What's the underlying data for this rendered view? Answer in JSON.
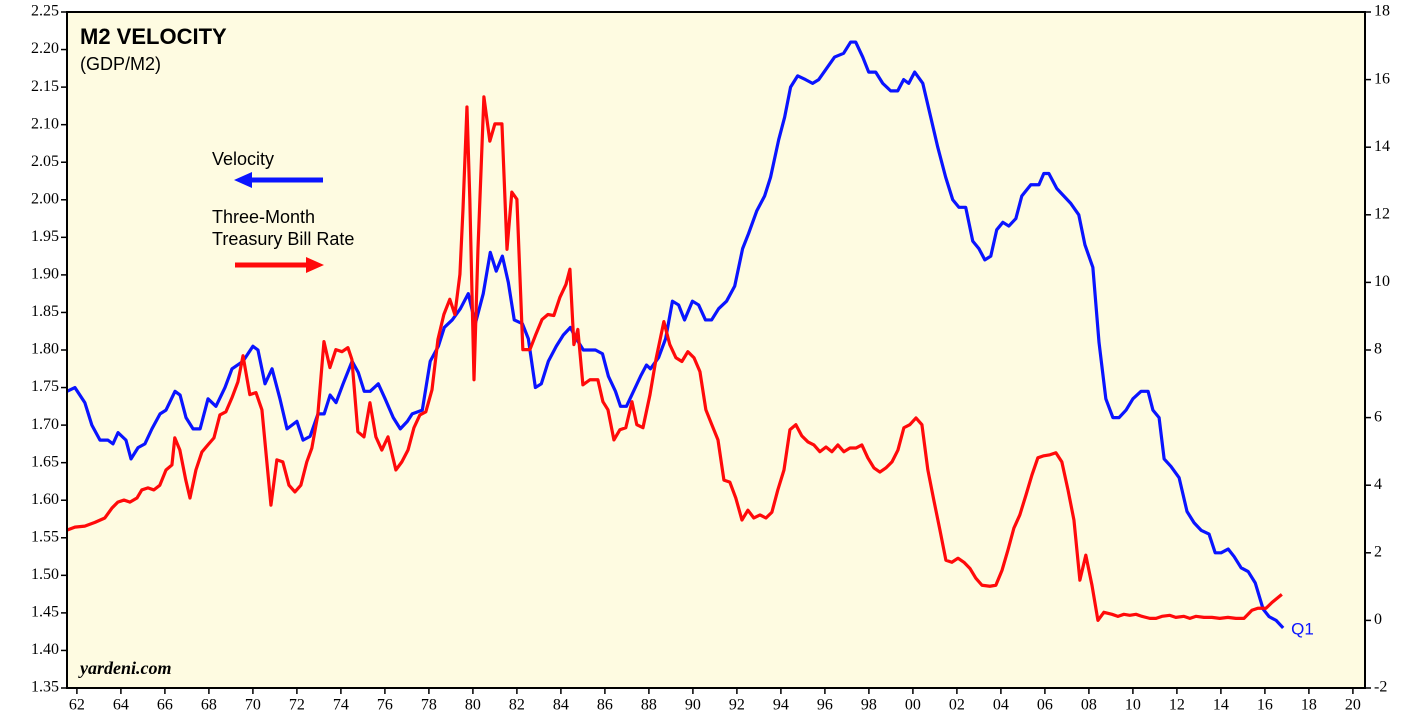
{
  "chart_data": {
    "type": "line",
    "title": "M2 VELOCITY",
    "subtitle": "(GDP/M2)",
    "watermark": "yardeni.com",
    "annotations": [
      {
        "text": "Q1",
        "x": 2016.83,
        "y": 1.43
      }
    ],
    "xlim": [
      1961.55,
      2020.55
    ],
    "xticks": [
      {
        "value": 1962,
        "label": "62"
      },
      {
        "value": 1964,
        "label": "64"
      },
      {
        "value": 1966,
        "label": "66"
      },
      {
        "value": 1968,
        "label": "68"
      },
      {
        "value": 1970,
        "label": "70"
      },
      {
        "value": 1972,
        "label": "72"
      },
      {
        "value": 1974,
        "label": "74"
      },
      {
        "value": 1976,
        "label": "76"
      },
      {
        "value": 1978,
        "label": "78"
      },
      {
        "value": 1980,
        "label": "80"
      },
      {
        "value": 1982,
        "label": "82"
      },
      {
        "value": 1984,
        "label": "84"
      },
      {
        "value": 1986,
        "label": "86"
      },
      {
        "value": 1988,
        "label": "88"
      },
      {
        "value": 1990,
        "label": "90"
      },
      {
        "value": 1992,
        "label": "92"
      },
      {
        "value": 1994,
        "label": "94"
      },
      {
        "value": 1996,
        "label": "96"
      },
      {
        "value": 1998,
        "label": "98"
      },
      {
        "value": 2000,
        "label": "00"
      },
      {
        "value": 2002,
        "label": "02"
      },
      {
        "value": 2004,
        "label": "04"
      },
      {
        "value": 2006,
        "label": "06"
      },
      {
        "value": 2008,
        "label": "08"
      },
      {
        "value": 2010,
        "label": "10"
      },
      {
        "value": 2012,
        "label": "12"
      },
      {
        "value": 2014,
        "label": "14"
      },
      {
        "value": 2016,
        "label": "16"
      },
      {
        "value": 2018,
        "label": "18"
      },
      {
        "value": 2020,
        "label": "20"
      }
    ],
    "ylim": [
      1.35,
      2.25
    ],
    "yticks": [
      {
        "value": 1.35,
        "label": "1.35"
      },
      {
        "value": 1.4,
        "label": "1.40"
      },
      {
        "value": 1.45,
        "label": "1.45"
      },
      {
        "value": 1.5,
        "label": "1.50"
      },
      {
        "value": 1.55,
        "label": "1.55"
      },
      {
        "value": 1.6,
        "label": "1.60"
      },
      {
        "value": 1.65,
        "label": "1.65"
      },
      {
        "value": 1.7,
        "label": "1.70"
      },
      {
        "value": 1.75,
        "label": "1.75"
      },
      {
        "value": 1.8,
        "label": "1.80"
      },
      {
        "value": 1.85,
        "label": "1.85"
      },
      {
        "value": 1.9,
        "label": "1.90"
      },
      {
        "value": 1.95,
        "label": "1.95"
      },
      {
        "value": 2.0,
        "label": "2.00"
      },
      {
        "value": 2.05,
        "label": "2.05"
      },
      {
        "value": 2.1,
        "label": "2.10"
      },
      {
        "value": 2.15,
        "label": "2.15"
      },
      {
        "value": 2.2,
        "label": "2.20"
      },
      {
        "value": 2.25,
        "label": "2.25"
      }
    ],
    "y2lim": [
      -2,
      18
    ],
    "y2ticks": [
      -2,
      0,
      2,
      4,
      6,
      8,
      10,
      12,
      14,
      16,
      18
    ],
    "grid": false,
    "series": [
      {
        "name": "Velocity",
        "color": "#0a14ff",
        "axis": "y",
        "x": [
          1961.55,
          1961.91,
          1962.36,
          1962.68,
          1963.05,
          1963.41,
          1963.64,
          1963.87,
          1964.23,
          1964.46,
          1964.78,
          1965.09,
          1965.41,
          1965.78,
          1966.05,
          1966.46,
          1966.69,
          1966.96,
          1967.28,
          1967.6,
          1967.96,
          1968.32,
          1968.73,
          1969.05,
          1969.55,
          1970.0,
          1970.23,
          1970.55,
          1970.87,
          1971.23,
          1971.55,
          1972.0,
          1972.28,
          1972.6,
          1972.96,
          1973.24,
          1973.51,
          1973.78,
          1974.1,
          1974.51,
          1974.79,
          1975.06,
          1975.33,
          1975.7,
          1976.01,
          1976.38,
          1976.7,
          1977.02,
          1977.24,
          1977.7,
          1978.06,
          1978.43,
          1978.7,
          1979.06,
          1979.43,
          1979.79,
          1980.11,
          1980.47,
          1980.79,
          1981.06,
          1981.34,
          1981.61,
          1981.88,
          1982.25,
          1982.52,
          1982.84,
          1983.11,
          1983.43,
          1983.79,
          1984.11,
          1984.43,
          1984.7,
          1985.02,
          1985.57,
          1985.89,
          1986.16,
          1986.48,
          1986.71,
          1986.98,
          1987.3,
          1987.62,
          1987.89,
          1988.07,
          1988.44,
          1988.76,
          1989.07,
          1989.35,
          1989.62,
          1989.98,
          1990.26,
          1990.57,
          1990.85,
          1991.17,
          1991.53,
          1991.9,
          1992.26,
          1992.53,
          1992.9,
          1993.26,
          1993.53,
          1993.9,
          1994.17,
          1994.44,
          1994.76,
          1995.12,
          1995.44,
          1995.72,
          1996.08,
          1996.44,
          1996.85,
          1997.17,
          1997.4,
          1997.72,
          1997.99,
          1998.31,
          1998.63,
          1998.99,
          1999.31,
          1999.58,
          1999.81,
          2000.08,
          2000.45,
          2000.81,
          2001.13,
          2001.49,
          2001.81,
          2002.09,
          2002.4,
          2002.72,
          2003.0,
          2003.27,
          2003.54,
          2003.81,
          2004.09,
          2004.36,
          2004.68,
          2004.95,
          2005.36,
          2005.73,
          2005.95,
          2006.18,
          2006.54,
          2006.86,
          2007.18,
          2007.54,
          2007.82,
          2008.18,
          2008.46,
          2008.77,
          2009.09,
          2009.37,
          2009.69,
          2010.0,
          2010.37,
          2010.69,
          2010.91,
          2011.19,
          2011.42,
          2011.73,
          2012.1,
          2012.46,
          2012.78,
          2013.1,
          2013.46,
          2013.74,
          2014.01,
          2014.33,
          2014.6,
          2014.92,
          2015.24,
          2015.56,
          2015.92,
          2016.19,
          2016.51,
          2016.83
        ],
        "values": [
          1.745,
          1.75,
          1.73,
          1.7,
          1.68,
          1.68,
          1.675,
          1.69,
          1.68,
          1.655,
          1.67,
          1.675,
          1.695,
          1.715,
          1.72,
          1.745,
          1.74,
          1.71,
          1.695,
          1.695,
          1.735,
          1.725,
          1.75,
          1.775,
          1.785,
          1.805,
          1.8,
          1.755,
          1.775,
          1.735,
          1.695,
          1.705,
          1.68,
          1.685,
          1.715,
          1.715,
          1.74,
          1.73,
          1.755,
          1.785,
          1.77,
          1.745,
          1.745,
          1.755,
          1.735,
          1.71,
          1.695,
          1.705,
          1.715,
          1.72,
          1.785,
          1.805,
          1.83,
          1.84,
          1.855,
          1.875,
          1.835,
          1.875,
          1.93,
          1.905,
          1.925,
          1.89,
          1.84,
          1.835,
          1.815,
          1.75,
          1.755,
          1.785,
          1.805,
          1.82,
          1.83,
          1.815,
          1.8,
          1.8,
          1.795,
          1.765,
          1.745,
          1.725,
          1.725,
          1.745,
          1.765,
          1.78,
          1.775,
          1.79,
          1.815,
          1.865,
          1.86,
          1.84,
          1.865,
          1.86,
          1.84,
          1.84,
          1.855,
          1.865,
          1.885,
          1.935,
          1.955,
          1.985,
          2.005,
          2.03,
          2.08,
          2.11,
          2.15,
          2.165,
          2.16,
          2.155,
          2.16,
          2.175,
          2.19,
          2.195,
          2.21,
          2.21,
          2.19,
          2.17,
          2.17,
          2.155,
          2.145,
          2.145,
          2.16,
          2.155,
          2.17,
          2.155,
          2.11,
          2.07,
          2.03,
          2.0,
          1.99,
          1.99,
          1.945,
          1.935,
          1.92,
          1.925,
          1.96,
          1.97,
          1.965,
          1.975,
          2.005,
          2.02,
          2.02,
          2.035,
          2.035,
          2.015,
          2.005,
          1.995,
          1.98,
          1.94,
          1.91,
          1.81,
          1.735,
          1.71,
          1.71,
          1.72,
          1.735,
          1.745,
          1.745,
          1.72,
          1.71,
          1.655,
          1.645,
          1.63,
          1.585,
          1.57,
          1.56,
          1.555,
          1.53,
          1.53,
          1.535,
          1.525,
          1.51,
          1.505,
          1.49,
          1.455,
          1.445,
          1.44,
          1.43
        ]
      },
      {
        "name": "Three-Month Treasury Bill Rate",
        "color": "#ff0a0a",
        "axis": "y2",
        "x": [
          1961.55,
          1961.91,
          1962.36,
          1962.82,
          1963.27,
          1963.59,
          1963.86,
          1964.14,
          1964.41,
          1964.73,
          1964.95,
          1965.23,
          1965.5,
          1965.77,
          1966.05,
          1966.32,
          1966.45,
          1966.68,
          1966.95,
          1967.14,
          1967.41,
          1967.68,
          1967.95,
          1968.23,
          1968.5,
          1968.77,
          1969.05,
          1969.32,
          1969.55,
          1969.86,
          1970.14,
          1970.41,
          1970.82,
          1971.09,
          1971.36,
          1971.64,
          1971.91,
          1972.18,
          1972.45,
          1972.68,
          1972.95,
          1973.23,
          1973.5,
          1973.77,
          1974.05,
          1974.32,
          1974.5,
          1974.77,
          1975.05,
          1975.32,
          1975.59,
          1975.86,
          1976.14,
          1976.5,
          1976.77,
          1977.05,
          1977.32,
          1977.59,
          1977.86,
          1978.14,
          1978.41,
          1978.68,
          1978.95,
          1979.18,
          1979.41,
          1979.55,
          1979.73,
          1979.86,
          1980.05,
          1980.23,
          1980.5,
          1980.77,
          1981.0,
          1981.32,
          1981.55,
          1981.77,
          1982.0,
          1982.27,
          1982.59,
          1982.86,
          1983.14,
          1983.41,
          1983.68,
          1983.95,
          1984.23,
          1984.41,
          1984.59,
          1984.77,
          1985.0,
          1985.32,
          1985.68,
          1985.91,
          1986.14,
          1986.41,
          1986.68,
          1986.95,
          1987.23,
          1987.45,
          1987.73,
          1988.05,
          1988.32,
          1988.68,
          1988.95,
          1989.23,
          1989.5,
          1989.77,
          1990.05,
          1990.32,
          1990.59,
          1990.86,
          1991.14,
          1991.41,
          1991.68,
          1991.95,
          1992.23,
          1992.5,
          1992.77,
          1993.05,
          1993.32,
          1993.59,
          1993.86,
          1994.14,
          1994.41,
          1994.68,
          1994.95,
          1995.23,
          1995.5,
          1995.77,
          1996.05,
          1996.32,
          1996.59,
          1996.86,
          1997.14,
          1997.41,
          1997.68,
          1997.95,
          1998.23,
          1998.5,
          1998.77,
          1999.05,
          1999.32,
          1999.59,
          1999.86,
          2000.14,
          2000.41,
          2000.68,
          2000.95,
          2001.23,
          2001.5,
          2001.77,
          2002.05,
          2002.32,
          2002.59,
          2002.86,
          2003.14,
          2003.5,
          2003.77,
          2004.05,
          2004.32,
          2004.59,
          2004.86,
          2005.14,
          2005.41,
          2005.68,
          2005.95,
          2006.23,
          2006.5,
          2006.77,
          2007.05,
          2007.32,
          2007.59,
          2007.86,
          2008.14,
          2008.41,
          2008.68,
          2009.05,
          2009.32,
          2009.59,
          2009.86,
          2010.14,
          2010.41,
          2010.77,
          2011.05,
          2011.32,
          2011.68,
          2011.95,
          2012.32,
          2012.59,
          2012.86,
          2013.23,
          2013.59,
          2013.95,
          2014.32,
          2014.68,
          2015.05,
          2015.41,
          2015.68,
          2016.05,
          2016.32,
          2016.77
        ],
        "values": [
          2.67,
          2.76,
          2.79,
          2.9,
          3.03,
          3.32,
          3.5,
          3.56,
          3.5,
          3.62,
          3.86,
          3.92,
          3.86,
          4.0,
          4.45,
          4.6,
          5.4,
          5.04,
          4.15,
          3.62,
          4.45,
          4.98,
          5.19,
          5.4,
          6.08,
          6.17,
          6.59,
          7.06,
          7.83,
          6.68,
          6.74,
          6.23,
          3.41,
          4.75,
          4.69,
          4.0,
          3.8,
          4.0,
          4.69,
          5.1,
          6.08,
          8.25,
          7.48,
          8.01,
          7.95,
          8.07,
          7.72,
          5.58,
          5.43,
          6.44,
          5.43,
          5.04,
          5.43,
          4.45,
          4.69,
          5.04,
          5.7,
          6.08,
          6.17,
          6.82,
          8.31,
          9.05,
          9.5,
          9.05,
          10.24,
          12.17,
          15.19,
          12.46,
          7.12,
          10.98,
          15.49,
          14.18,
          14.69,
          14.69,
          10.98,
          12.67,
          12.46,
          8.01,
          8.01,
          8.46,
          8.9,
          9.05,
          9.02,
          9.55,
          9.94,
          10.39,
          8.16,
          8.61,
          6.97,
          7.12,
          7.12,
          6.47,
          6.23,
          5.34,
          5.64,
          5.7,
          6.47,
          5.79,
          5.7,
          6.68,
          7.72,
          8.84,
          8.16,
          7.77,
          7.66,
          7.95,
          7.77,
          7.36,
          6.23,
          5.79,
          5.34,
          4.15,
          4.09,
          3.62,
          2.97,
          3.26,
          3.03,
          3.12,
          3.03,
          3.2,
          3.86,
          4.45,
          5.64,
          5.79,
          5.46,
          5.28,
          5.19,
          4.99,
          5.13,
          4.99,
          5.19,
          4.99,
          5.1,
          5.1,
          5.19,
          4.81,
          4.51,
          4.39,
          4.51,
          4.69,
          5.04,
          5.7,
          5.79,
          5.99,
          5.79,
          4.45,
          3.56,
          2.67,
          1.78,
          1.72,
          1.84,
          1.72,
          1.54,
          1.25,
          1.04,
          1.01,
          1.04,
          1.48,
          2.08,
          2.73,
          3.12,
          3.71,
          4.3,
          4.81,
          4.87,
          4.9,
          4.96,
          4.69,
          3.86,
          2.97,
          1.19,
          1.93,
          1.04,
          0.0,
          0.24,
          0.18,
          0.12,
          0.18,
          0.15,
          0.18,
          0.12,
          0.06,
          0.06,
          0.12,
          0.15,
          0.09,
          0.12,
          0.06,
          0.12,
          0.09,
          0.09,
          0.06,
          0.09,
          0.06,
          0.06,
          0.3,
          0.36,
          0.36,
          0.53,
          0.77
        ]
      }
    ]
  }
}
